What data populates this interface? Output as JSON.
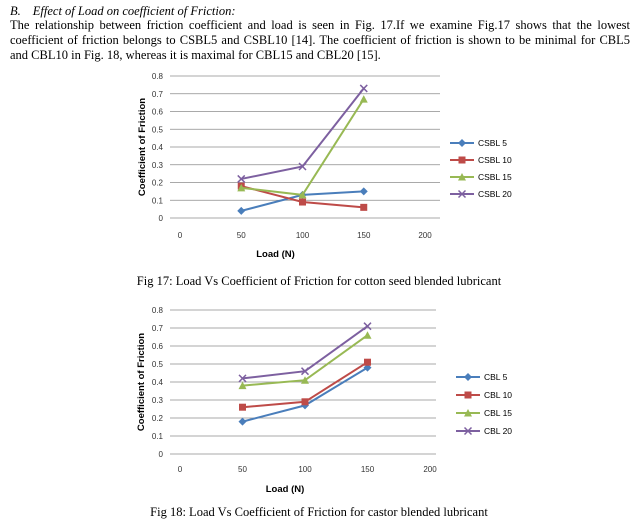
{
  "heading": {
    "lead": "B.",
    "text": "Effect of Load on coefficient of Friction:"
  },
  "paragraph": "The relationship between friction coefficient and load is seen in Fig. 17.If we examine Fig.17 shows that the lowest coefficient of friction belongs to CSBL5 and CSBL10 [14]. The coefficient of friction is shown to be minimal for CBL5 and CBL10 in Fig. 18, whereas it is maximal for CBL15 and CBL20 [15].",
  "fig17_caption": "Fig 17: Load Vs Coefficient of Friction for cotton seed blended lubricant",
  "fig18_caption": "Fig 18: Load Vs Coefficient of Friction for castor blended lubricant",
  "colors": {
    "blue": "#4a7ebb",
    "red": "#be4b48",
    "green": "#98b954",
    "purple": "#7d60a0"
  },
  "chart_data": [
    {
      "type": "line",
      "x_ticks": [
        0,
        50,
        100,
        150,
        200
      ],
      "y_ticks": [
        0,
        0.1,
        0.2,
        0.3,
        0.4,
        0.5,
        0.6,
        0.7,
        0.8
      ],
      "xlim": [
        0,
        200
      ],
      "ylim": [
        0,
        0.8
      ],
      "xlabel": "Load (N)",
      "ylabel": "Coefficient of Friction",
      "grid": true,
      "legend": "right",
      "series": [
        {
          "name": "CSBL 5",
          "color": "#4a7ebb",
          "marker": "diamond",
          "x": [
            50,
            100,
            150
          ],
          "y": [
            0.04,
            0.13,
            0.15
          ]
        },
        {
          "name": "CSBL 10",
          "color": "#be4b48",
          "marker": "square",
          "x": [
            50,
            100,
            150
          ],
          "y": [
            0.18,
            0.09,
            0.06
          ]
        },
        {
          "name": "CSBL 15",
          "color": "#98b954",
          "marker": "triangle",
          "x": [
            50,
            100,
            150
          ],
          "y": [
            0.17,
            0.13,
            0.67
          ]
        },
        {
          "name": "CSBL 20",
          "color": "#7d60a0",
          "marker": "x",
          "x": [
            50,
            100,
            150
          ],
          "y": [
            0.22,
            0.29,
            0.73
          ]
        }
      ]
    },
    {
      "type": "line",
      "x_ticks": [
        0,
        50,
        100,
        150,
        200
      ],
      "y_ticks": [
        0,
        0.1,
        0.2,
        0.3,
        0.4,
        0.5,
        0.6,
        0.7,
        0.8
      ],
      "xlim": [
        0,
        200
      ],
      "ylim": [
        0,
        0.8
      ],
      "xlabel": "Load (N)",
      "ylabel": "Coefficient of Friction",
      "grid": true,
      "legend": "right",
      "series": [
        {
          "name": "CBL 5",
          "color": "#4a7ebb",
          "marker": "diamond",
          "x": [
            50,
            100,
            150
          ],
          "y": [
            0.18,
            0.27,
            0.48
          ]
        },
        {
          "name": "CBL 10",
          "color": "#be4b48",
          "marker": "square",
          "x": [
            50,
            100,
            150
          ],
          "y": [
            0.26,
            0.29,
            0.51
          ]
        },
        {
          "name": "CBL 15",
          "color": "#98b954",
          "marker": "triangle",
          "x": [
            50,
            100,
            150
          ],
          "y": [
            0.38,
            0.41,
            0.66
          ]
        },
        {
          "name": "CBL 20",
          "color": "#7d60a0",
          "marker": "x",
          "x": [
            50,
            100,
            150
          ],
          "y": [
            0.42,
            0.46,
            0.71
          ]
        }
      ]
    }
  ]
}
